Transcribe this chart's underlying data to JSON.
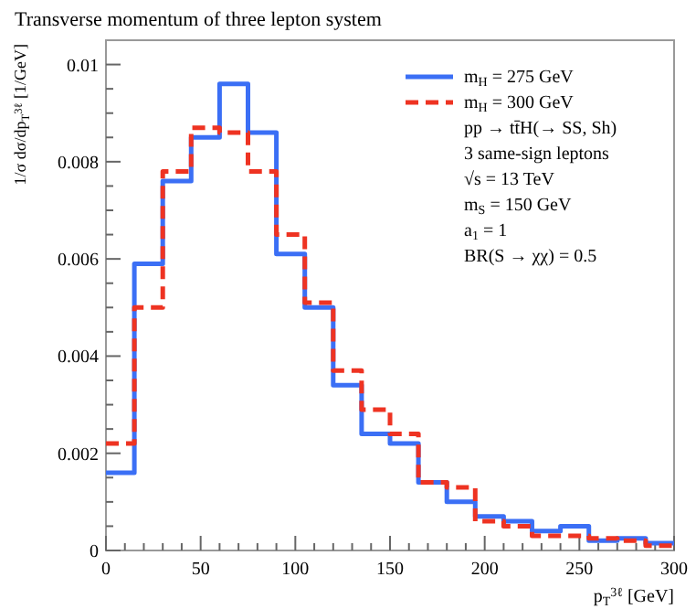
{
  "chart_data": {
    "type": "histogram",
    "title": "Transverse momentum of three lepton system",
    "xlabel": "p$_{T}$$^{3ℓ}$ [GeV]",
    "ylabel": "1/σ dσ/dp$_{T}$$^{3ℓ}$ [1/GeV]",
    "bins": [
      0,
      15,
      30,
      45,
      60,
      75,
      90,
      105,
      120,
      135,
      150,
      165,
      180,
      195,
      210,
      225,
      240,
      255,
      270,
      285,
      300
    ],
    "series": [
      {
        "name": "m$_{H}$ = 275 GeV",
        "color": "#3b6ff5",
        "line_style": "solid",
        "values": [
          0.0016,
          0.0059,
          0.0076,
          0.0085,
          0.0096,
          0.0086,
          0.0061,
          0.005,
          0.0034,
          0.0024,
          0.0022,
          0.0014,
          0.001,
          0.0007,
          0.0006,
          0.0004,
          0.0005,
          0.0002,
          0.00025,
          0.00015
        ]
      },
      {
        "name": "m$_{H}$ = 300 GeV",
        "color": "#ee3322",
        "line_style": "dashed",
        "values": [
          0.0022,
          0.005,
          0.0078,
          0.0087,
          0.0086,
          0.0078,
          0.0065,
          0.0051,
          0.0037,
          0.0029,
          0.0024,
          0.0014,
          0.0013,
          0.0006,
          0.0005,
          0.0003,
          0.0003,
          0.00025,
          0.0002,
          0.0001
        ]
      }
    ],
    "annotations": [
      "pp → tt̄H(→ SS, Sh)",
      "3 same-sign leptons",
      "√s = 13 TeV",
      "m$_{S}$ = 150 GeV",
      "a$_{1}$ = 1",
      "BR(S → χχ) = 0.5"
    ],
    "xlim": [
      0,
      300
    ],
    "ylim": [
      0,
      0.0105
    ],
    "xticks": [
      0,
      {
        "value": 10,
        "label": null
      },
      {
        "value": 20,
        "label": null
      },
      {
        "value": 30,
        "label": null
      },
      {
        "value": 40,
        "label": null
      },
      50,
      {
        "value": 60,
        "label": null
      },
      {
        "value": 70,
        "label": null
      },
      {
        "value": 80,
        "label": null
      },
      {
        "value": 90,
        "label": null
      },
      100,
      {
        "value": 110,
        "label": null
      },
      {
        "value": 120,
        "label": null
      },
      {
        "value": 130,
        "label": null
      },
      {
        "value": 140,
        "label": null
      },
      150,
      {
        "value": 160,
        "label": null
      },
      {
        "value": 170,
        "label": null
      },
      {
        "value": 180,
        "label": null
      },
      {
        "value": 190,
        "label": null
      },
      200,
      {
        "value": 210,
        "label": null
      },
      {
        "value": 220,
        "label": null
      },
      {
        "value": 230,
        "label": null
      },
      {
        "value": 240,
        "label": null
      },
      250,
      {
        "value": 260,
        "label": null
      },
      {
        "value": 270,
        "label": null
      },
      {
        "value": 280,
        "label": null
      },
      {
        "value": 290,
        "label": null
      },
      300
    ],
    "yticks": [
      0,
      {
        "value": 0.0005,
        "label": null
      },
      {
        "value": 0.001,
        "label": null
      },
      {
        "value": 0.0015,
        "label": null
      },
      0.002,
      {
        "value": 0.0025,
        "label": null
      },
      {
        "value": 0.003,
        "label": null
      },
      {
        "value": 0.0035,
        "label": null
      },
      0.004,
      {
        "value": 0.0045,
        "label": null
      },
      {
        "value": 0.005,
        "label": null
      },
      {
        "value": 0.0055,
        "label": null
      },
      0.006,
      {
        "value": 0.0065,
        "label": null
      },
      {
        "value": 0.007,
        "label": null
      },
      {
        "value": 0.0075,
        "label": null
      },
      0.008,
      {
        "value": 0.0085,
        "label": null
      },
      {
        "value": 0.009,
        "label": null
      },
      {
        "value": 0.0095,
        "label": null
      },
      0.01
    ],
    "legend": "top right",
    "grid": false
  }
}
